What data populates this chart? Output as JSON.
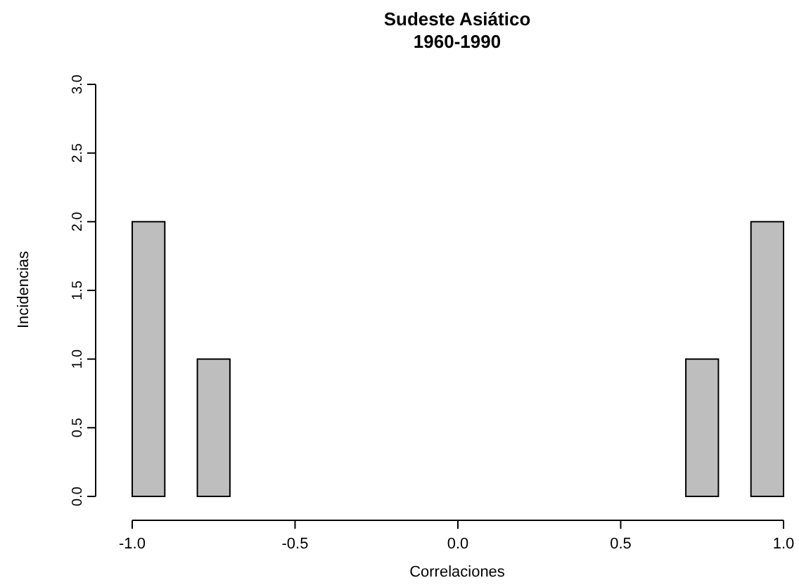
{
  "chart_data": {
    "type": "histogram",
    "title": "Sudeste Asiático",
    "subtitle": "1960-1990",
    "xlabel": "Correlaciones",
    "ylabel": "Incidencias",
    "bins": [
      -1.0,
      -0.9,
      -0.8,
      -0.7,
      -0.6,
      -0.5,
      -0.4,
      -0.3,
      -0.2,
      -0.1,
      0.0,
      0.1,
      0.2,
      0.3,
      0.4,
      0.5,
      0.6,
      0.7,
      0.8,
      0.9,
      1.0
    ],
    "values": [
      2,
      0,
      1,
      0,
      0,
      0,
      0,
      0,
      0,
      0,
      0,
      0,
      0,
      0,
      0,
      0,
      0,
      1,
      0,
      2
    ],
    "color": "#bebebe",
    "xlim": [
      -1,
      1
    ],
    "ylim": [
      0,
      3
    ],
    "xticks": [
      {
        "value": -1,
        "label": "-1.0"
      },
      {
        "value": -0.5,
        "label": "-0.5"
      },
      {
        "value": 0,
        "label": "0.0"
      },
      {
        "value": 0.5,
        "label": "0.5"
      },
      {
        "value": 1,
        "label": "1.0"
      }
    ],
    "yticks": [
      {
        "value": 0,
        "label": "0.0"
      },
      {
        "value": 0.5,
        "label": "0.5"
      },
      {
        "value": 1,
        "label": "1.0"
      },
      {
        "value": 1.5,
        "label": "1.5"
      },
      {
        "value": 2,
        "label": "2.0"
      },
      {
        "value": 2.5,
        "label": "2.5"
      },
      {
        "value": 3,
        "label": "3.0"
      }
    ],
    "grid": false
  }
}
